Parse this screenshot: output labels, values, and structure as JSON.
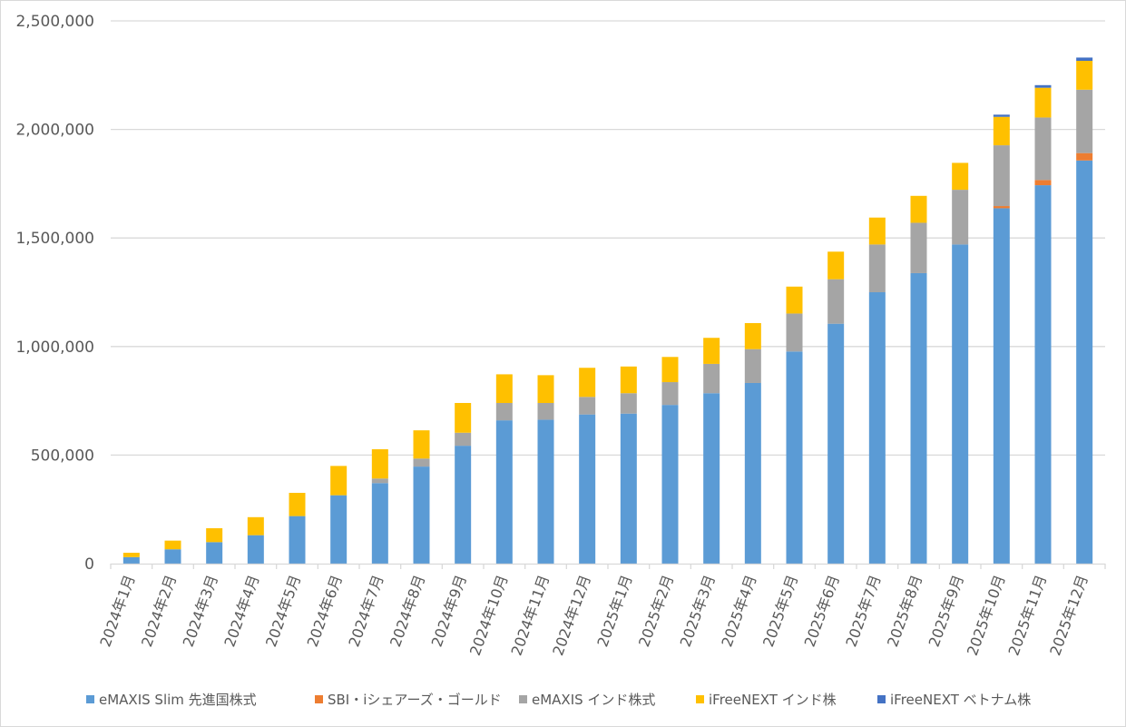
{
  "chart_data": {
    "type": "bar",
    "stacked": true,
    "title": "",
    "xlabel": "",
    "ylabel": "",
    "ylim": [
      0,
      2500000
    ],
    "yticks": [
      0,
      500000,
      1000000,
      1500000,
      2000000,
      2500000
    ],
    "ytick_labels": [
      "0",
      "500,000",
      "1,000,000",
      "1,500,000",
      "2,000,000",
      "2,500,000"
    ],
    "grid": true,
    "legend_placement": "bottom",
    "categories": [
      "2024年1月",
      "2024年2月",
      "2024年3月",
      "2024年4月",
      "2024年5月",
      "2024年6月",
      "2024年7月",
      "2024年8月",
      "2024年9月",
      "2024年10月",
      "2024年11月",
      "2024年12月",
      "2025年1月",
      "2025年2月",
      "2025年3月",
      "2025年4月",
      "2025年5月",
      "2025年6月",
      "2025年7月",
      "2025年8月",
      "2025年9月",
      "2025年10月",
      "2025年11月",
      "2025年12月"
    ],
    "series": [
      {
        "name": "eMAXIS Slim 先進国株式",
        "color": "#5B9BD5",
        "values": [
          30000,
          66000,
          99000,
          131000,
          219000,
          315000,
          371000,
          447000,
          543000,
          660000,
          663000,
          687000,
          691000,
          731000,
          785000,
          832000,
          977000,
          1105000,
          1250000,
          1338000,
          1470000,
          1637000,
          1743000,
          1857000
        ]
      },
      {
        "name": "SBI・iシェアーズ・ゴールド",
        "color": "#ED7D31",
        "values": [
          0,
          0,
          0,
          0,
          0,
          0,
          0,
          0,
          0,
          0,
          0,
          0,
          0,
          0,
          0,
          0,
          0,
          0,
          0,
          0,
          0,
          10000,
          24000,
          34000
        ]
      },
      {
        "name": "eMAXIS インド株式",
        "color": "#A5A5A5",
        "values": [
          0,
          0,
          0,
          0,
          0,
          0,
          21000,
          37000,
          60000,
          80000,
          77000,
          81000,
          94000,
          105000,
          135000,
          156000,
          175000,
          205000,
          220000,
          232000,
          252000,
          280000,
          288000,
          292000
        ]
      },
      {
        "name": "iFreeNEXT インド株",
        "color": "#FFC000",
        "values": [
          20000,
          40000,
          64000,
          83000,
          107000,
          135000,
          135000,
          130000,
          137000,
          132000,
          128000,
          134000,
          123000,
          116000,
          120000,
          120000,
          124000,
          127000,
          124000,
          124000,
          124000,
          131000,
          137000,
          133000
        ]
      },
      {
        "name": "iFreeNEXT ベトナム株",
        "color": "#4472C4",
        "values": [
          0,
          0,
          0,
          0,
          0,
          0,
          0,
          0,
          0,
          0,
          0,
          0,
          0,
          0,
          0,
          0,
          0,
          0,
          0,
          0,
          0,
          10000,
          12000,
          15000
        ]
      }
    ]
  }
}
